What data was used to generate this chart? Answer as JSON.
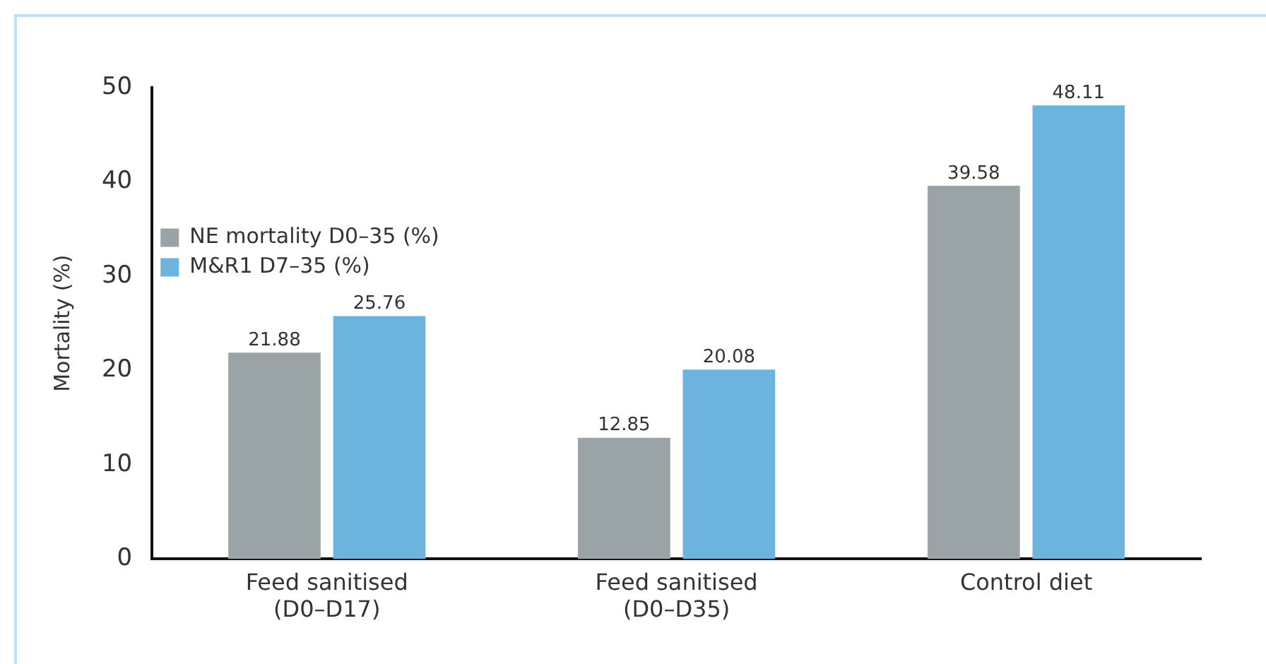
{
  "chart_data": {
    "type": "bar",
    "ylabel": "Mortality (%)",
    "categories": [
      "Feed sanitised\n(D0–D17)",
      "Feed sanitised\n(D0–D35)",
      "Control diet"
    ],
    "series": [
      {
        "name": "NE mortality D0–35 (%)",
        "color": "#9aa3a5",
        "values": [
          21.88,
          12.85,
          39.58
        ]
      },
      {
        "name": "M&R1 D7–35 (%)",
        "color": "#6cb4de",
        "values": [
          25.76,
          20.08,
          48.11
        ]
      }
    ],
    "ylim": [
      0,
      50
    ],
    "yticks": [
      0,
      10,
      20,
      30,
      40,
      50
    ],
    "grid": false,
    "legend": "top",
    "data_labels": true
  }
}
